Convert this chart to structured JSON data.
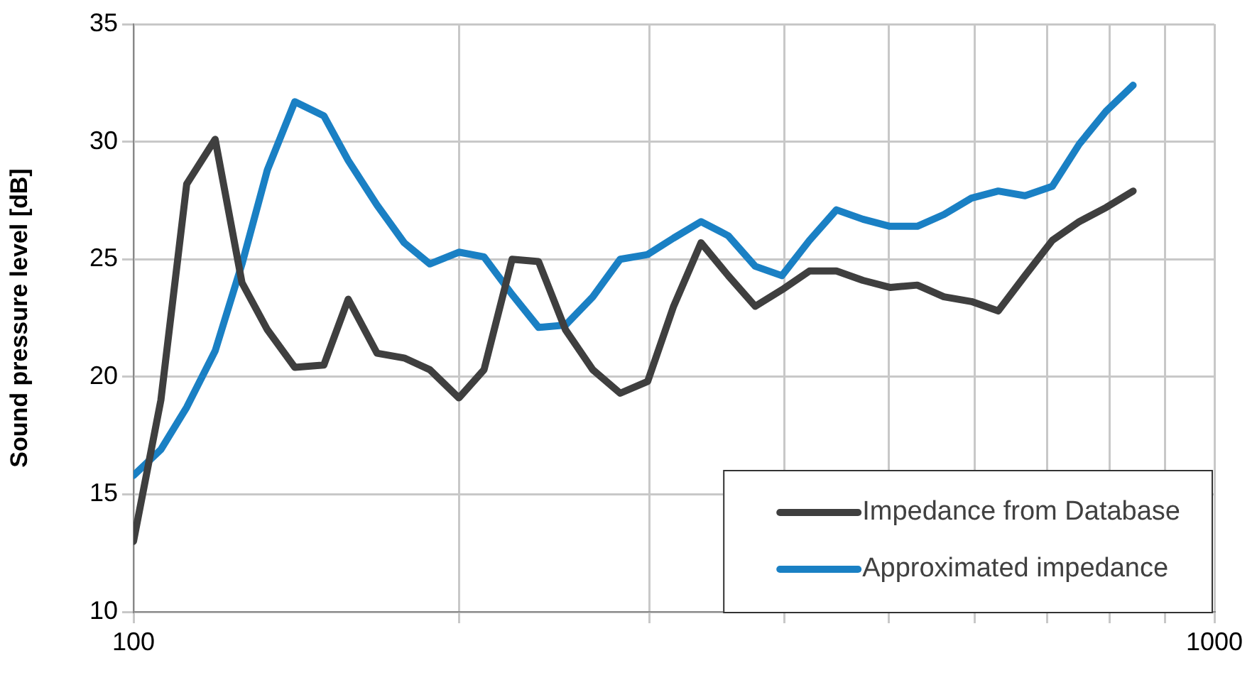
{
  "chart_data": {
    "type": "line",
    "ylabel": "Sound pressure level [dB]",
    "log": "x",
    "x": [
      100,
      106,
      112,
      119,
      126,
      133,
      141,
      150,
      158,
      168,
      178,
      188,
      200,
      211,
      224,
      237,
      251,
      266,
      282,
      299,
      316,
      335,
      355,
      376,
      398,
      422,
      447,
      473,
      501,
      531,
      562,
      596,
      631,
      668,
      708,
      750,
      794,
      841
    ],
    "series": [
      {
        "name": "Impedance from Database",
        "color": "#3f3f3f",
        "values": [
          13,
          19,
          28.2,
          30.1,
          24,
          22,
          20.4,
          20.5,
          23.3,
          21,
          20.8,
          20.3,
          19.1,
          20.3,
          25,
          24.9,
          22,
          20.3,
          19.3,
          19.8,
          23,
          25.7,
          24.3,
          23,
          23.7,
          24.5,
          24.5,
          24.1,
          23.8,
          23.9,
          23.4,
          23.2,
          22.8,
          24.3,
          25.8,
          26.6,
          27.2,
          27.9
        ]
      },
      {
        "name": "Approximated impedance",
        "color": "#1a80c4",
        "values": [
          15.8,
          16.9,
          18.7,
          21.1,
          24.8,
          28.8,
          31.7,
          31.1,
          29.2,
          27.3,
          25.7,
          24.8,
          25.3,
          25.1,
          23.5,
          22.1,
          22.2,
          23.4,
          25,
          25.2,
          25.9,
          26.6,
          26,
          24.7,
          24.3,
          25.8,
          27.1,
          26.7,
          26.4,
          26.4,
          26.9,
          27.6,
          27.9,
          27.7,
          28.1,
          29.9,
          31.3,
          32.4
        ]
      }
    ],
    "xlim": [
      100,
      1000
    ],
    "xticks": [
      100,
      {
        "value": 200,
        "label": null
      },
      {
        "value": 300,
        "label": null
      },
      {
        "value": 400,
        "label": null
      },
      {
        "value": 500,
        "label": null
      },
      {
        "value": 600,
        "label": null
      },
      {
        "value": 700,
        "label": null
      },
      {
        "value": 800,
        "label": null
      },
      {
        "value": 900,
        "label": null
      },
      1000
    ],
    "ylim": [
      10,
      35
    ],
    "yticks": [
      10,
      15,
      20,
      25,
      30,
      35
    ],
    "grid": true,
    "legend": "bottom right",
    "marker": "none",
    "line_style": "solid"
  }
}
